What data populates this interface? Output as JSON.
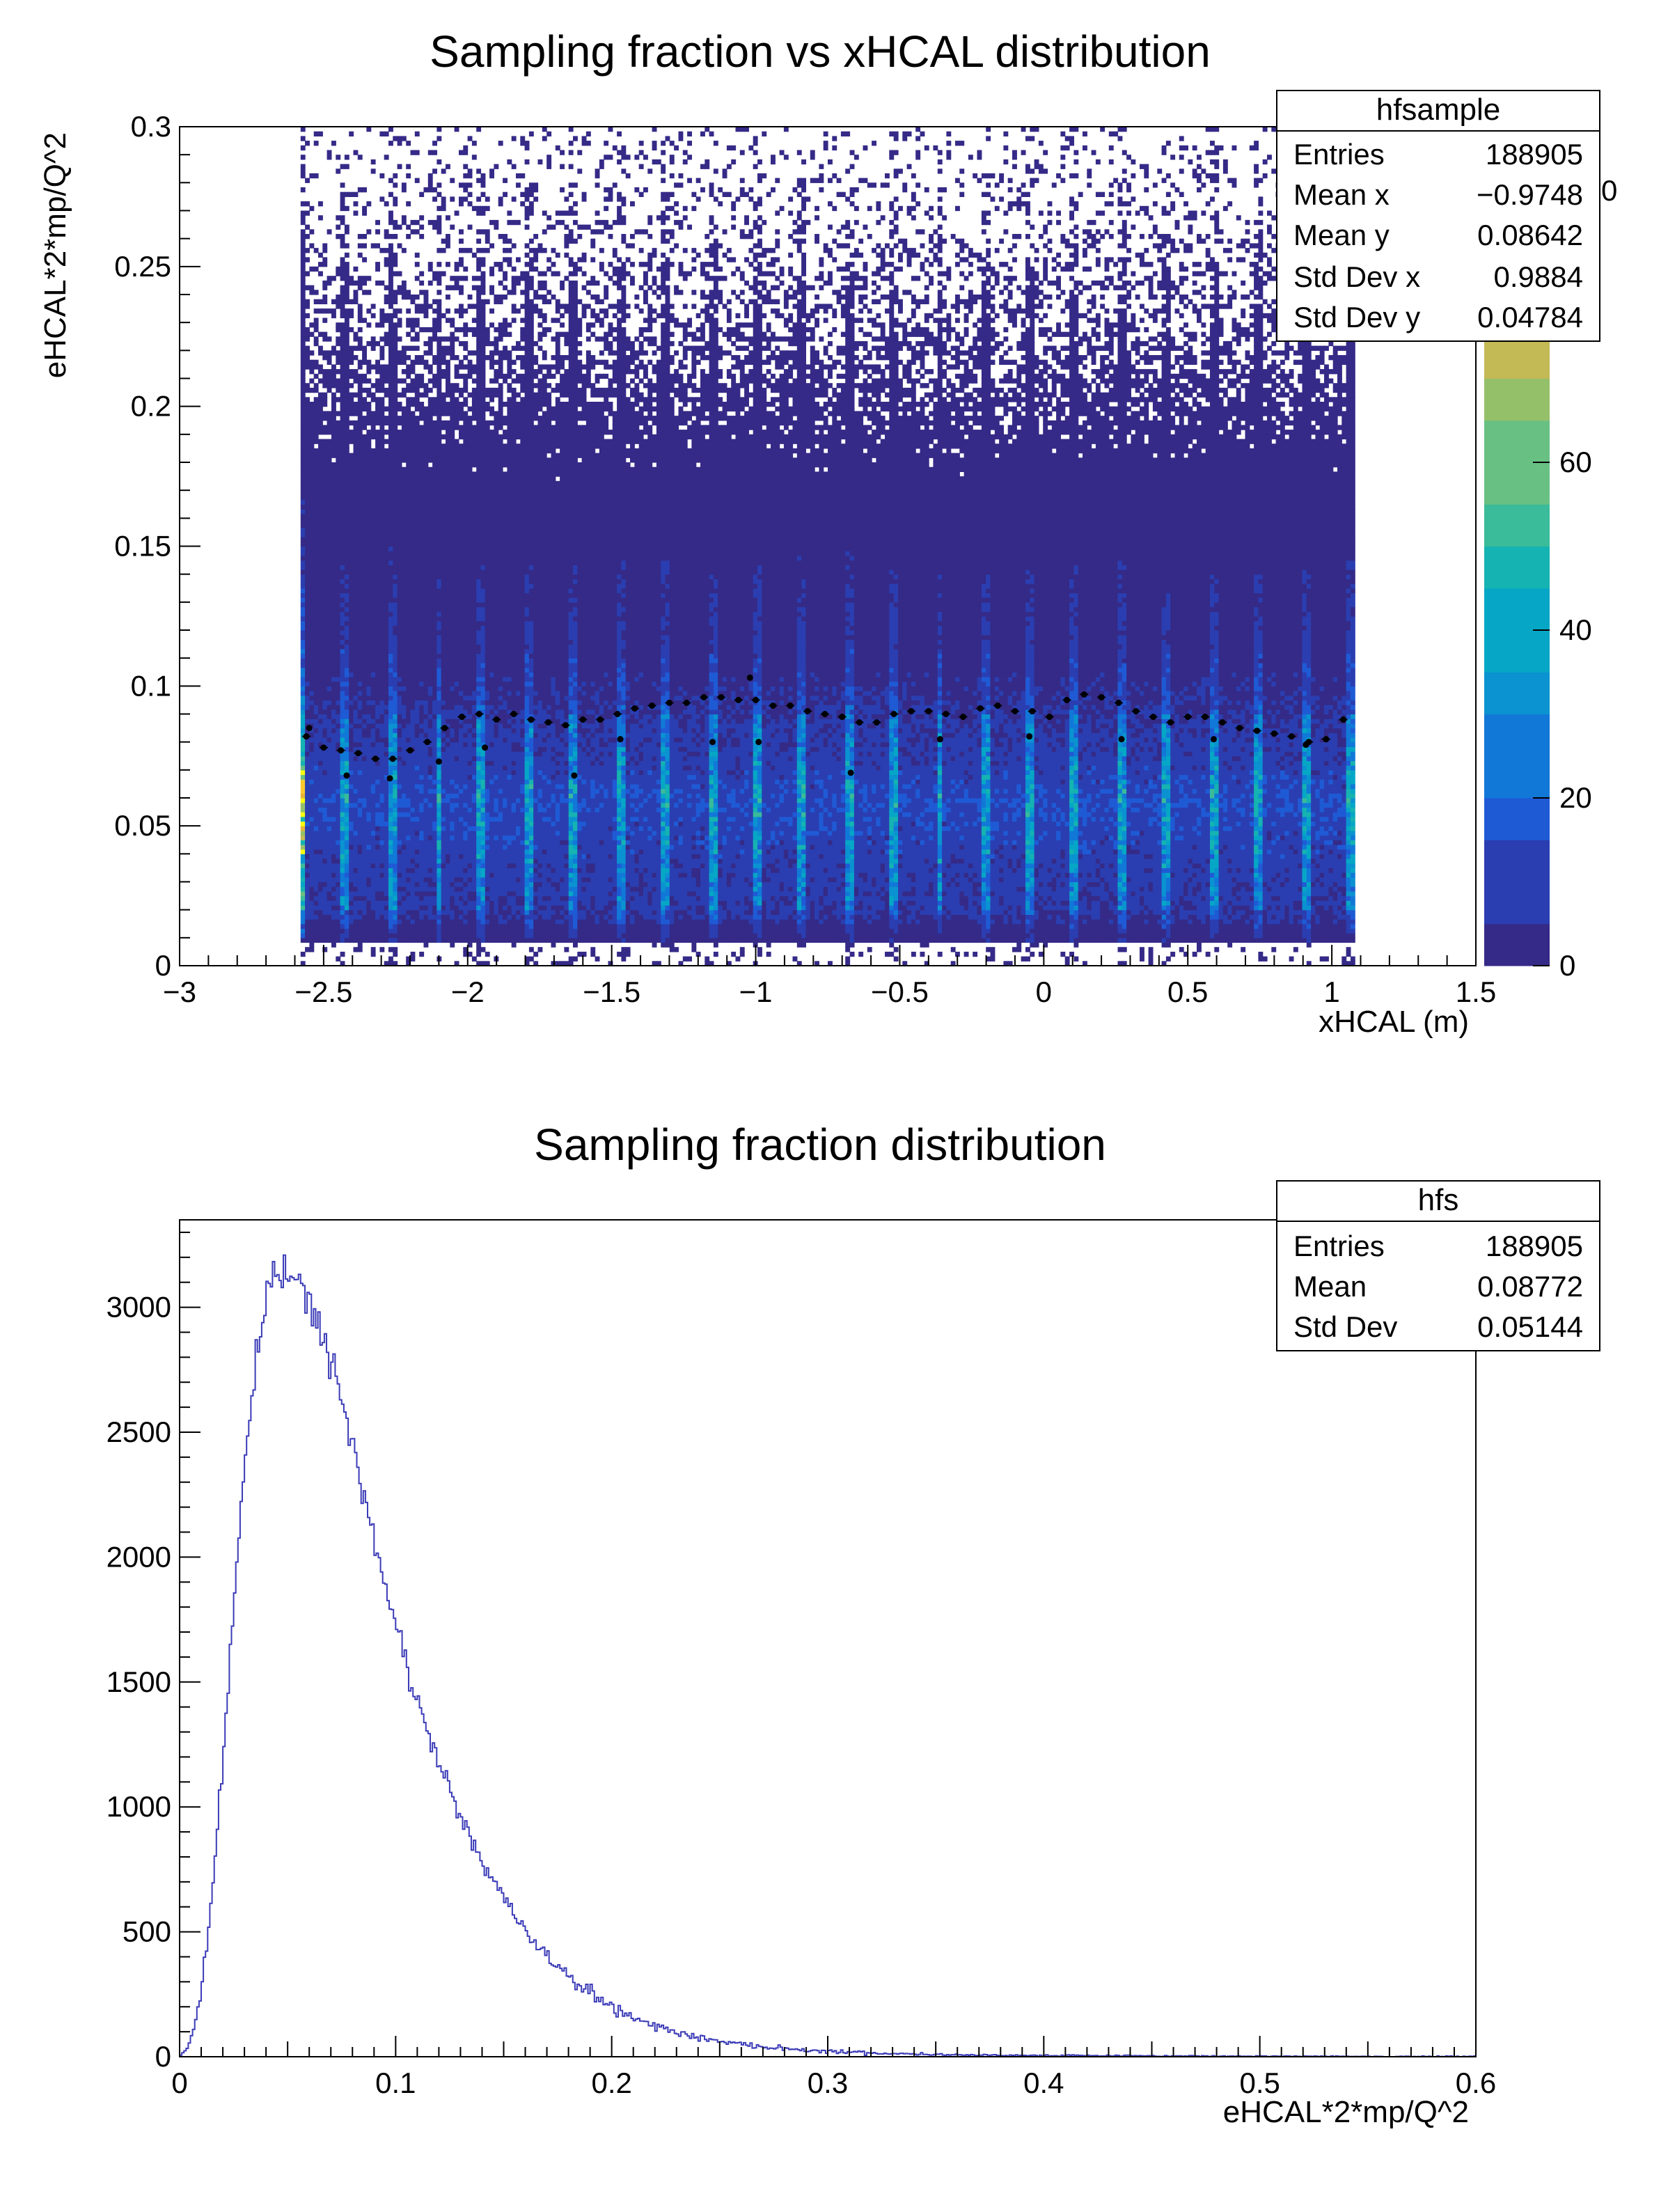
{
  "chart_data": [
    {
      "type": "heatmap",
      "title": "Sampling fraction vs xHCAL distribution",
      "xlabel": "xHCAL (m)",
      "ylabel": "eHCAL*2*mp/Q^2",
      "xlim": [
        -3,
        1.5
      ],
      "ylim": [
        0,
        0.3
      ],
      "x_ticks": [
        -3,
        -2.5,
        -2,
        -1.5,
        -1,
        -0.5,
        0,
        0.5,
        1,
        1.5
      ],
      "y_ticks": [
        0,
        0.05,
        0.1,
        0.15,
        0.2,
        0.25,
        0.3
      ],
      "x_tick_labels": [
        "−3",
        "−2.5",
        "−2",
        "−1.5",
        "−1",
        "−0.5",
        "0",
        "0.5",
        "1",
        "1.5"
      ],
      "y_tick_labels": [
        "0",
        "0.05",
        "0.1",
        "0.15",
        "0.2",
        "0.25",
        "0.3"
      ],
      "data_x_range": [
        -2.58,
        1.08
      ],
      "bright_columns_x": [
        -2.58,
        -2.43,
        -2.26,
        -2.1,
        -1.95,
        -1.79,
        -1.63,
        -1.47,
        -1.32,
        -1.15,
        -0.99,
        -0.84,
        -0.67,
        -0.52,
        -0.36,
        -0.2,
        -0.05,
        0.11,
        0.27,
        0.43,
        0.59,
        0.75,
        0.91,
        1.07
      ],
      "colorbar": {
        "range": [
          0,
          100
        ],
        "ticks": [
          0,
          20,
          40,
          60,
          80
        ],
        "tick_labels": [
          "0",
          "20",
          "40",
          "60",
          "80"
        ],
        "colors": [
          "#352a87",
          "#2a3eb1",
          "#1f5ad5",
          "#1178d8",
          "#0a93d0",
          "#06a7c6",
          "#15b3b1",
          "#3abb9a",
          "#68c083",
          "#95c06a",
          "#c3b955",
          "#e6b43a",
          "#f9c82f",
          "#f9fb0e"
        ]
      },
      "profile": {
        "x": [
          -2.56,
          -2.5,
          -2.44,
          -2.38,
          -2.32,
          -2.26,
          -2.2,
          -2.14,
          -2.08,
          -2.02,
          -1.96,
          -1.9,
          -1.84,
          -1.78,
          -1.72,
          -1.66,
          -1.6,
          -1.54,
          -1.48,
          -1.42,
          -1.36,
          -1.3,
          -1.24,
          -1.18,
          -1.12,
          -1.06,
          -1.0,
          -0.94,
          -0.88,
          -0.82,
          -0.76,
          -0.7,
          -0.64,
          -0.58,
          -0.52,
          -0.46,
          -0.4,
          -0.34,
          -0.28,
          -0.22,
          -0.16,
          -0.1,
          -0.04,
          0.02,
          0.08,
          0.14,
          0.2,
          0.26,
          0.32,
          0.38,
          0.44,
          0.5,
          0.56,
          0.62,
          0.68,
          0.74,
          0.8,
          0.86,
          0.92,
          0.98,
          1.04
        ],
        "y": [
          0.082,
          0.078,
          0.077,
          0.076,
          0.074,
          0.074,
          0.077,
          0.08,
          0.085,
          0.089,
          0.09,
          0.088,
          0.09,
          0.088,
          0.087,
          0.086,
          0.088,
          0.088,
          0.09,
          0.092,
          0.093,
          0.094,
          0.094,
          0.096,
          0.096,
          0.095,
          0.095,
          0.093,
          0.093,
          0.091,
          0.09,
          0.089,
          0.087,
          0.087,
          0.09,
          0.091,
          0.091,
          0.09,
          0.089,
          0.092,
          0.093,
          0.091,
          0.091,
          0.089,
          0.095,
          0.097,
          0.096,
          0.094,
          0.091,
          0.089,
          0.087,
          0.089,
          0.089,
          0.087,
          0.085,
          0.084,
          0.083,
          0.082,
          0.08,
          0.081,
          0.088
        ],
        "outliers": [
          [
            -2.55,
            0.085
          ],
          [
            -2.42,
            0.068
          ],
          [
            -2.27,
            0.067
          ],
          [
            -2.1,
            0.073
          ],
          [
            -1.94,
            0.078
          ],
          [
            -1.63,
            0.068
          ],
          [
            -1.47,
            0.081
          ],
          [
            -1.15,
            0.08
          ],
          [
            -0.99,
            0.08
          ],
          [
            -0.67,
            0.069
          ],
          [
            -0.36,
            0.081
          ],
          [
            -0.05,
            0.082
          ],
          [
            0.27,
            0.081
          ],
          [
            0.59,
            0.081
          ],
          [
            0.91,
            0.079
          ],
          [
            -1.02,
            0.103
          ]
        ]
      },
      "stats_box": {
        "name": "hfsample",
        "rows": [
          {
            "label": "Entries",
            "value": "188905"
          },
          {
            "label": "Mean x",
            "value": "−0.9748"
          },
          {
            "label": "Mean y",
            "value": "0.08642"
          },
          {
            "label": "Std Dev x",
            "value": "0.9884"
          },
          {
            "label": "Std Dev y",
            "value": "0.04784"
          }
        ]
      },
      "partial_label": "0"
    },
    {
      "type": "histogram",
      "title": "Sampling fraction distribution",
      "xlabel": "eHCAL*2*mp/Q^2",
      "ylabel": "",
      "xlim": [
        0,
        0.6
      ],
      "ylim": [
        0,
        3350
      ],
      "x_ticks": [
        0,
        0.1,
        0.2,
        0.3,
        0.4,
        0.5,
        0.6
      ],
      "y_ticks": [
        0,
        500,
        1000,
        1500,
        2000,
        2500,
        3000
      ],
      "x_tick_labels": [
        "0",
        "0.1",
        "0.2",
        "0.3",
        "0.4",
        "0.5",
        "0.6"
      ],
      "y_tick_labels": [
        "0",
        "500",
        "1000",
        "1500",
        "2000",
        "2500",
        "3000"
      ],
      "line_color": "#3b3bb8",
      "curve_x": [
        0.0,
        0.005,
        0.01,
        0.015,
        0.02,
        0.025,
        0.03,
        0.035,
        0.04,
        0.045,
        0.05,
        0.055,
        0.06,
        0.065,
        0.07,
        0.075,
        0.08,
        0.085,
        0.09,
        0.095,
        0.1,
        0.11,
        0.12,
        0.13,
        0.14,
        0.15,
        0.16,
        0.17,
        0.18,
        0.19,
        0.2,
        0.21,
        0.22,
        0.23,
        0.24,
        0.25,
        0.26,
        0.28,
        0.3,
        0.32,
        0.34,
        0.36,
        0.38,
        0.4,
        0.45,
        0.5,
        0.55,
        0.6
      ],
      "curve_y": [
        0,
        60,
        250,
        650,
        1200,
        1800,
        2350,
        2750,
        3000,
        3120,
        3150,
        3130,
        3050,
        2900,
        2760,
        2620,
        2440,
        2250,
        2060,
        1880,
        1720,
        1430,
        1180,
        960,
        780,
        630,
        510,
        405,
        320,
        255,
        200,
        160,
        125,
        98,
        78,
        62,
        50,
        33,
        22,
        15,
        11,
        8,
        6,
        5,
        3,
        2,
        1,
        0
      ],
      "stats_box": {
        "name": "hfs",
        "rows": [
          {
            "label": "Entries",
            "value": "188905"
          },
          {
            "label": "Mean",
            "value": "0.08772"
          },
          {
            "label": "Std Dev",
            "value": "0.05144"
          }
        ]
      }
    }
  ]
}
